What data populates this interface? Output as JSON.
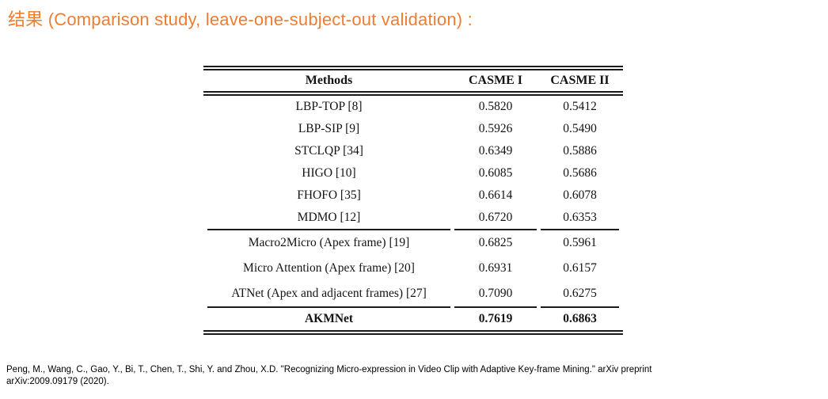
{
  "title": {
    "text": "结果 (Comparison study, leave-one-subject-out validation) :",
    "accent_color": "#ED7D31"
  },
  "table": {
    "columns": [
      "Methods",
      "CASME I",
      "CASME II"
    ],
    "rule_color": "#1a1a1a",
    "groups": [
      {
        "rows": [
          {
            "method": "LBP-TOP [8]",
            "casme1": "0.5820",
            "casme2": "0.5412"
          },
          {
            "method": "LBP-SIP [9]",
            "casme1": "0.5926",
            "casme2": "0.5490"
          },
          {
            "method": "STCLQP [34]",
            "casme1": "0.6349",
            "casme2": "0.5886"
          },
          {
            "method": "HIGO [10]",
            "casme1": "0.6085",
            "casme2": "0.5686"
          },
          {
            "method": "FHOFO [35]",
            "casme1": "0.6614",
            "casme2": "0.6078"
          },
          {
            "method": "MDMO [12]",
            "casme1": "0.6720",
            "casme2": "0.6353"
          }
        ]
      },
      {
        "rows": [
          {
            "method": "Macro2Micro (Apex frame) [19]",
            "casme1": "0.6825",
            "casme2": "0.5961"
          },
          {
            "method": "Micro Attention (Apex frame) [20]",
            "casme1": "0.6931",
            "casme2": "0.6157"
          },
          {
            "method": "ATNet (Apex and adjacent frames) [27]",
            "casme1": "0.7090",
            "casme2": "0.6275"
          }
        ]
      },
      {
        "rows": [
          {
            "method": "AKMNet",
            "casme1": "0.7619",
            "casme2": "0.6863",
            "bold": true
          }
        ]
      }
    ]
  },
  "footer": {
    "citation_line1": "Peng, M., Wang, C., Gao, Y., Bi, T., Chen, T., Shi, Y. and Zhou, X.D. \"Recognizing Micro-expression in Video Clip with Adaptive Key-frame Mining.\" arXiv preprint",
    "citation_line2": "arXiv:2009.09179 (2020)."
  }
}
